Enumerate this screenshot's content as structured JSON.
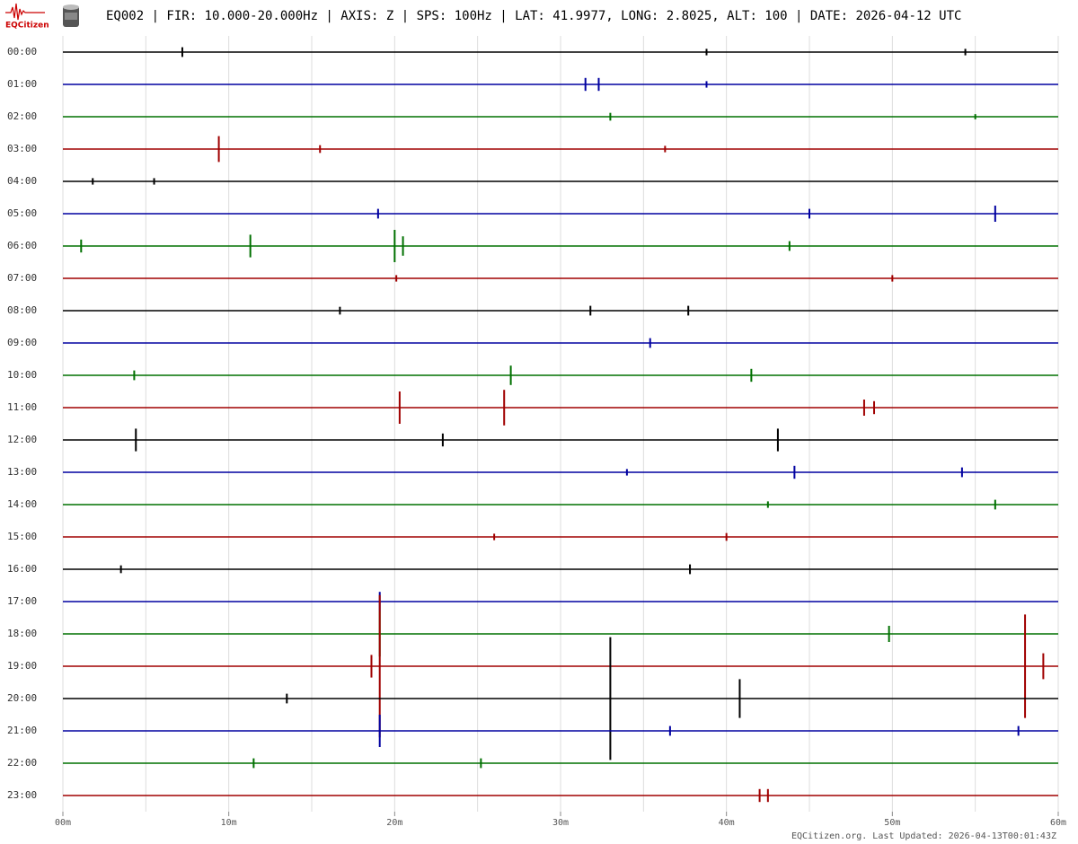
{
  "chart_data": {
    "type": "helicorder",
    "logo": "EQCitizen",
    "title": "EQ002 | FIR: 10.000-20.000Hz | AXIS: Z | SPS: 100Hz | LAT: 41.9977, LONG: 2.8025, ALT: 100 | DATE: 2026-04-12 UTC",
    "footer": "EQCitizen.org. Last Updated: 2026-04-13T00:01:43Z",
    "xlim": [
      0,
      60
    ],
    "xticks": [
      {
        "value": 0,
        "label": "00m"
      },
      {
        "value": 10,
        "label": "10m"
      },
      {
        "value": 20,
        "label": "20m"
      },
      {
        "value": 30,
        "label": "30m"
      },
      {
        "value": 40,
        "label": "40m"
      },
      {
        "value": 50,
        "label": "50m"
      },
      {
        "value": 60,
        "label": "60m"
      }
    ],
    "xgrid": [
      0,
      5,
      10,
      15,
      20,
      25,
      30,
      35,
      40,
      45,
      50,
      55,
      60
    ],
    "series": [
      {
        "name": "00:00",
        "color": "#000000",
        "x": [
          7.2,
          38.8,
          54.4
        ],
        "values": [
          0.15,
          0.1,
          0.1
        ]
      },
      {
        "name": "01:00",
        "color": "#0000a0",
        "x": [
          31.5,
          32.3,
          38.8
        ],
        "values": [
          0.2,
          0.2,
          0.1
        ]
      },
      {
        "name": "02:00",
        "color": "#007000",
        "x": [
          33,
          55
        ],
        "values": [
          0.12,
          0.08
        ]
      },
      {
        "name": "03:00",
        "color": "#a00000",
        "x": [
          9.4,
          15.5,
          36.3
        ],
        "values": [
          0.4,
          0.12,
          0.1
        ]
      },
      {
        "name": "04:00",
        "color": "#000000",
        "x": [
          1.8,
          5.5
        ],
        "values": [
          0.1,
          0.1
        ]
      },
      {
        "name": "05:00",
        "color": "#0000a0",
        "x": [
          19,
          45,
          56.2
        ],
        "values": [
          0.15,
          0.15,
          0.25
        ]
      },
      {
        "name": "06:00",
        "color": "#007000",
        "x": [
          1.1,
          11.3,
          20,
          20.5,
          43.8
        ],
        "values": [
          0.2,
          0.35,
          0.5,
          0.3,
          0.15
        ]
      },
      {
        "name": "07:00",
        "color": "#a00000",
        "x": [
          20.1,
          50
        ],
        "values": [
          0.1,
          0.1
        ]
      },
      {
        "name": "08:00",
        "color": "#000000",
        "x": [
          16.7,
          31.8,
          37.7
        ],
        "values": [
          0.12,
          0.15,
          0.15
        ]
      },
      {
        "name": "09:00",
        "color": "#0000a0",
        "x": [
          35.4
        ],
        "values": [
          0.15
        ]
      },
      {
        "name": "10:00",
        "color": "#007000",
        "x": [
          4.3,
          27,
          41.5
        ],
        "values": [
          0.15,
          0.3,
          0.2
        ]
      },
      {
        "name": "11:00",
        "color": "#a00000",
        "x": [
          20.3,
          26.6,
          48.3,
          48.9
        ],
        "values": [
          0.5,
          0.55,
          0.25,
          0.2
        ]
      },
      {
        "name": "12:00",
        "color": "#000000",
        "x": [
          4.4,
          22.9,
          43.1
        ],
        "values": [
          0.35,
          0.2,
          0.35
        ]
      },
      {
        "name": "13:00",
        "color": "#0000a0",
        "x": [
          34,
          44.1,
          54.2
        ],
        "values": [
          0.1,
          0.2,
          0.15
        ]
      },
      {
        "name": "14:00",
        "color": "#007000",
        "x": [
          42.5,
          56.2
        ],
        "values": [
          0.1,
          0.15
        ]
      },
      {
        "name": "15:00",
        "color": "#a00000",
        "x": [
          26,
          40
        ],
        "values": [
          0.1,
          0.12
        ]
      },
      {
        "name": "16:00",
        "color": "#000000",
        "x": [
          3.5,
          37.8
        ],
        "values": [
          0.12,
          0.15
        ]
      },
      {
        "name": "17:00",
        "color": "#0000a0",
        "x": [
          19.1
        ],
        "values": [
          0.3
        ]
      },
      {
        "name": "18:00",
        "color": "#007000",
        "x": [
          19.1,
          49.8
        ],
        "values": [
          0.7,
          0.25
        ]
      },
      {
        "name": "19:00",
        "color": "#a00000",
        "x": [
          18.6,
          19.1,
          58,
          59.1
        ],
        "values": [
          0.35,
          2.2,
          1.6,
          0.4
        ]
      },
      {
        "name": "20:00",
        "color": "#000000",
        "x": [
          13.5,
          33,
          40.8
        ],
        "values": [
          0.15,
          1.9,
          0.6
        ]
      },
      {
        "name": "21:00",
        "color": "#0000a0",
        "x": [
          19.1,
          36.6,
          57.6
        ],
        "values": [
          0.5,
          0.15,
          0.15
        ]
      },
      {
        "name": "22:00",
        "color": "#007000",
        "x": [
          11.5,
          25.2
        ],
        "values": [
          0.15,
          0.15
        ]
      },
      {
        "name": "23:00",
        "color": "#a00000",
        "x": [
          42,
          42.5
        ],
        "values": [
          0.2,
          0.2
        ]
      }
    ]
  }
}
